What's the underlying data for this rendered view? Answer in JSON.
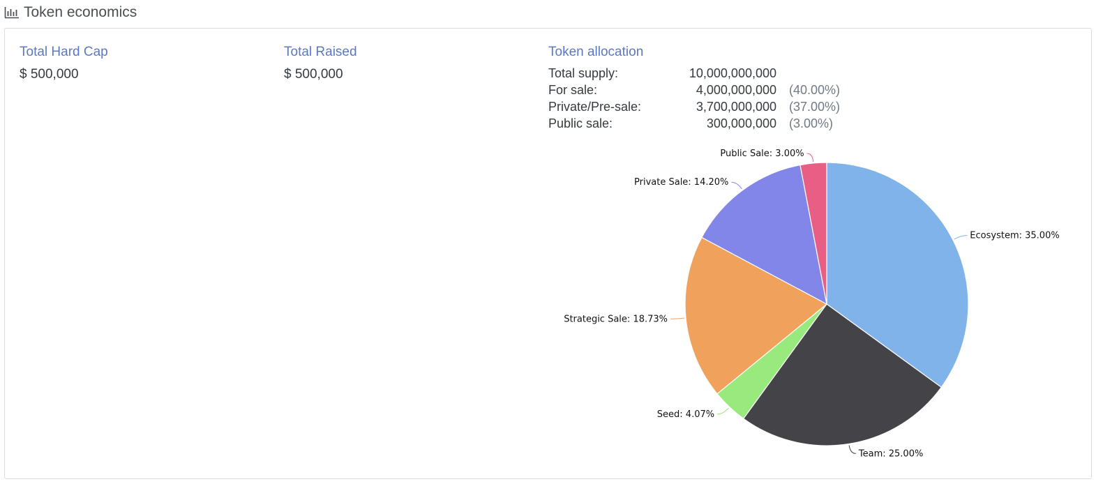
{
  "section": {
    "title": "Token economics",
    "icon": "bar-chart-icon"
  },
  "stats": {
    "hard_cap": {
      "label": "Total Hard Cap",
      "value": "$ 500,000"
    },
    "raised": {
      "label": "Total Raised",
      "value": "$ 500,000"
    }
  },
  "allocation": {
    "title": "Token allocation",
    "rows": [
      {
        "label": "Total supply:",
        "value": "10,000,000,000",
        "pct": ""
      },
      {
        "label": "For sale:",
        "value": "4,000,000,000",
        "pct": "(40.00%)"
      },
      {
        "label": "Private/Pre-sale:",
        "value": "3,700,000,000",
        "pct": "(37.00%)"
      },
      {
        "label": "Public sale:",
        "value": "300,000,000",
        "pct": "(3.00%)"
      }
    ]
  },
  "chart_data": {
    "type": "pie",
    "slices": [
      {
        "name": "Ecosystem",
        "value": 35.0,
        "label": "Ecosystem: 35.00%",
        "color": "#7fb3ea"
      },
      {
        "name": "Team",
        "value": 25.0,
        "label": "Team: 25.00%",
        "color": "#434348"
      },
      {
        "name": "Seed",
        "value": 4.07,
        "label": "Seed: 4.07%",
        "color": "#98ea7c"
      },
      {
        "name": "Strategic Sale",
        "value": 18.73,
        "label": "Strategic Sale: 18.73%",
        "color": "#f0a25c"
      },
      {
        "name": "Private Sale",
        "value": 14.2,
        "label": "Private Sale: 14.20%",
        "color": "#8286e9"
      },
      {
        "name": "Public Sale",
        "value": 3.0,
        "label": "Public Sale: 3.00%",
        "color": "#e85e84"
      }
    ],
    "start_angle_deg": 0,
    "direction": "clockwise",
    "labels": "outside-with-connectors",
    "legend": "none"
  }
}
